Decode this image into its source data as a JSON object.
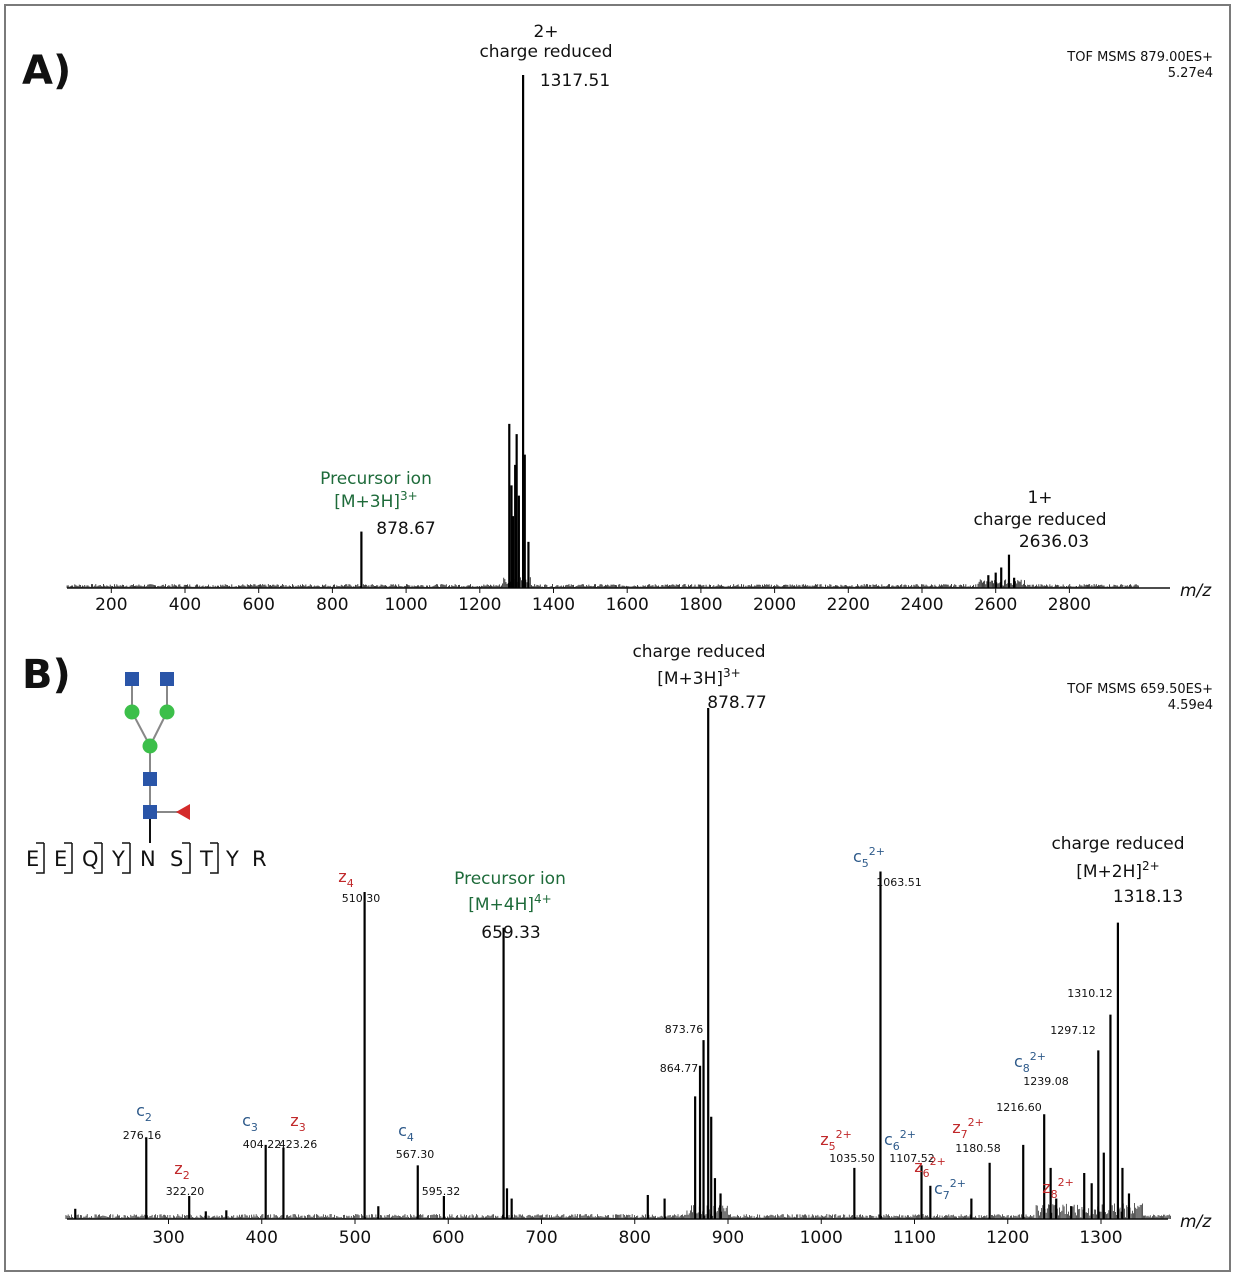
{
  "chart_data": [
    {
      "panel": "A)",
      "type": "line",
      "instrument": "TOF MSMS 879.00ES+",
      "intensity": "5.27e4",
      "xlabel": "m/z",
      "xlim": [
        80,
        2990
      ],
      "xticks": [
        200,
        400,
        600,
        800,
        1000,
        1200,
        1400,
        1600,
        1800,
        2000,
        2200,
        2400,
        2600,
        2800
      ],
      "ylim": [
        0,
        100
      ],
      "peaks": [
        {
          "x": 878.67,
          "y": 11
        },
        {
          "x": 1280,
          "y": 32
        },
        {
          "x": 1286,
          "y": 20
        },
        {
          "x": 1290,
          "y": 14
        },
        {
          "x": 1296,
          "y": 24
        },
        {
          "x": 1300,
          "y": 30
        },
        {
          "x": 1306,
          "y": 18
        },
        {
          "x": 1317.51,
          "y": 100
        },
        {
          "x": 1322,
          "y": 26
        },
        {
          "x": 1332,
          "y": 9
        },
        {
          "x": 2580,
          "y": 2.5
        },
        {
          "x": 2600,
          "y": 3
        },
        {
          "x": 2615,
          "y": 4
        },
        {
          "x": 2636.03,
          "y": 6.5
        },
        {
          "x": 2650,
          "y": 2
        }
      ],
      "annotations": [
        {
          "x": 1317.51,
          "lines": [
            "2+",
            "charge reduced"
          ],
          "value": "1317.51"
        },
        {
          "x": 878.67,
          "lines": [
            "Precursor ion",
            "[M+3H]"
          ],
          "sup": "3+",
          "value": "878.67"
        },
        {
          "x": 2636.03,
          "lines": [
            "1+",
            "charge reduced"
          ],
          "value": "2636.03"
        }
      ]
    },
    {
      "panel": "B)",
      "type": "line",
      "instrument": "TOF MSMS 659.50ES+",
      "intensity": "4.59e4",
      "xlabel": "m/z",
      "xlim": [
        190,
        1375
      ],
      "xticks": [
        300,
        400,
        500,
        600,
        700,
        800,
        900,
        1000,
        1100,
        1200,
        1300
      ],
      "ylim": [
        0,
        100
      ],
      "sequence": [
        "E",
        "E",
        "Q",
        "Y",
        "N",
        "S",
        "T",
        "Y",
        "R"
      ],
      "peaks": [
        {
          "x": 200,
          "y": 2
        },
        {
          "x": 276.16,
          "y": 16
        },
        {
          "x": 322.2,
          "y": 4.5
        },
        {
          "x": 340,
          "y": 1.5
        },
        {
          "x": 362,
          "y": 1.7
        },
        {
          "x": 404.22,
          "y": 14.5
        },
        {
          "x": 423.26,
          "y": 14
        },
        {
          "x": 510.3,
          "y": 64
        },
        {
          "x": 525,
          "y": 2.5
        },
        {
          "x": 567.3,
          "y": 10.5
        },
        {
          "x": 595.32,
          "y": 4.5
        },
        {
          "x": 659.33,
          "y": 57
        },
        {
          "x": 663,
          "y": 6
        },
        {
          "x": 668,
          "y": 4
        },
        {
          "x": 814,
          "y": 4.7
        },
        {
          "x": 832,
          "y": 4
        },
        {
          "x": 864.77,
          "y": 24
        },
        {
          "x": 870,
          "y": 30
        },
        {
          "x": 873.76,
          "y": 35
        },
        {
          "x": 878.77,
          "y": 100
        },
        {
          "x": 882,
          "y": 20
        },
        {
          "x": 886,
          "y": 8
        },
        {
          "x": 892,
          "y": 5
        },
        {
          "x": 1035.5,
          "y": 10
        },
        {
          "x": 1063.51,
          "y": 68
        },
        {
          "x": 1107.52,
          "y": 10.5
        },
        {
          "x": 1117,
          "y": 6.5
        },
        {
          "x": 1161,
          "y": 4
        },
        {
          "x": 1180.58,
          "y": 11
        },
        {
          "x": 1216.6,
          "y": 14.5
        },
        {
          "x": 1239.08,
          "y": 20.5
        },
        {
          "x": 1246,
          "y": 10
        },
        {
          "x": 1252,
          "y": 4
        },
        {
          "x": 1268,
          "y": 2.5
        },
        {
          "x": 1282,
          "y": 9
        },
        {
          "x": 1290,
          "y": 7
        },
        {
          "x": 1297.12,
          "y": 33
        },
        {
          "x": 1303,
          "y": 13
        },
        {
          "x": 1310.12,
          "y": 40
        },
        {
          "x": 1318.13,
          "y": 58
        },
        {
          "x": 1323,
          "y": 10
        },
        {
          "x": 1330,
          "y": 5
        }
      ],
      "annotations": [
        {
          "x": 878.77,
          "lines": [
            "charge reduced",
            "[M+3H]"
          ],
          "sup": "3+",
          "value": "878.77"
        },
        {
          "x": 659.33,
          "lines": [
            "Precursor ion",
            "[M+4H]"
          ],
          "sup": "4+",
          "value": "659.33"
        },
        {
          "x": 1318.13,
          "lines": [
            "charge reduced",
            "[M+2H]"
          ],
          "sup": "2+",
          "value": "1318.13"
        }
      ],
      "ion_labels": [
        {
          "series": "c",
          "color": "blue",
          "sub": "2",
          "sup": "",
          "value": "276.16"
        },
        {
          "series": "z",
          "color": "red",
          "sub": "2",
          "sup": "",
          "value": "322.20"
        },
        {
          "series": "c",
          "color": "blue",
          "sub": "3",
          "sup": "",
          "value": "404.22"
        },
        {
          "series": "z",
          "color": "red",
          "sub": "3",
          "sup": "",
          "value": "423.26"
        },
        {
          "series": "z",
          "color": "red",
          "sub": "4",
          "sup": "",
          "value": "510.30"
        },
        {
          "series": "c",
          "color": "blue",
          "sub": "4",
          "sup": "",
          "value": "567.30"
        },
        {
          "series": "",
          "color": "black",
          "sub": "",
          "sup": "",
          "value": "595.32"
        },
        {
          "series": "",
          "color": "black",
          "sub": "",
          "sup": "",
          "value": "864.77"
        },
        {
          "series": "",
          "color": "black",
          "sub": "",
          "sup": "",
          "value": "873.76"
        },
        {
          "series": "z",
          "color": "red",
          "sub": "5",
          "sup": "2+",
          "value": "1035.50"
        },
        {
          "series": "c",
          "color": "blue",
          "sub": "5",
          "sup": "2+",
          "value": "1063.51"
        },
        {
          "series": "c",
          "color": "blue",
          "sub": "6",
          "sup": "2+",
          "value": "1107.52"
        },
        {
          "series": "z",
          "color": "red",
          "sub": "6",
          "sup": "2+",
          "value": ""
        },
        {
          "series": "c",
          "color": "blue",
          "sub": "7",
          "sup": "2+",
          "value": ""
        },
        {
          "series": "z",
          "color": "red",
          "sub": "7",
          "sup": "2+",
          "value": "1180.58"
        },
        {
          "series": "",
          "color": "black",
          "sub": "",
          "sup": "",
          "value": "1216.60"
        },
        {
          "series": "c",
          "color": "blue",
          "sub": "8",
          "sup": "2+",
          "value": "1239.08"
        },
        {
          "series": "z",
          "color": "red",
          "sub": "8",
          "sup": "2+",
          "value": ""
        },
        {
          "series": "",
          "color": "black",
          "sub": "",
          "sup": "",
          "value": "1297.12"
        },
        {
          "series": "",
          "color": "black",
          "sub": "",
          "sup": "",
          "value": "1310.12"
        }
      ]
    }
  ],
  "colors": {
    "precursor_green": "#1e6b3a",
    "c_ion_blue": "#2e5a8a",
    "z_ion_red": "#c0282a",
    "glycan_square_blue": "#2a55a8",
    "glycan_circle_green": "#3cbf4a",
    "glycan_fucose_red": "#d42a2a"
  }
}
